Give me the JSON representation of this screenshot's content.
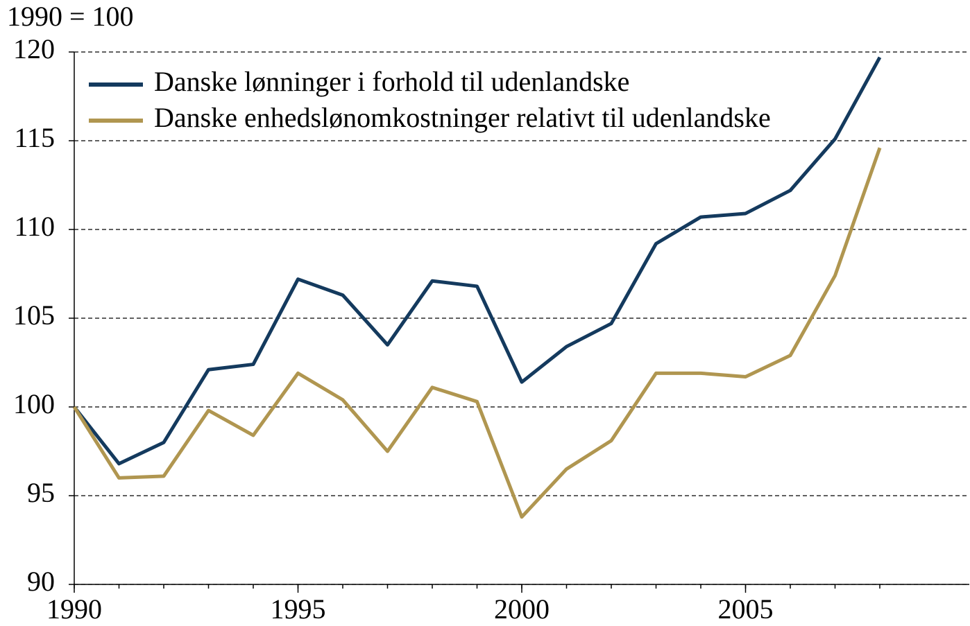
{
  "chart_data": {
    "type": "line",
    "unit_label": "1990 = 100",
    "x": [
      1990,
      1991,
      1992,
      1993,
      1994,
      1995,
      1996,
      1997,
      1998,
      1999,
      2000,
      2001,
      2002,
      2003,
      2004,
      2005,
      2006,
      2007,
      2008
    ],
    "series": [
      {
        "name": "Danske lønninger i forhold til udenlandske",
        "color": "#143a5e",
        "values": [
          100,
          96.8,
          98.0,
          102.1,
          102.4,
          107.2,
          106.3,
          103.5,
          107.1,
          106.8,
          101.4,
          103.4,
          104.7,
          109.2,
          110.7,
          110.9,
          112.2,
          115.1,
          119.7
        ]
      },
      {
        "name": "Danske enhedslønomkostninger relativt til udenlandske",
        "color": "#b09650",
        "values": [
          100,
          96.0,
          96.1,
          99.8,
          98.4,
          101.9,
          100.4,
          97.5,
          101.1,
          100.3,
          93.8,
          96.5,
          98.1,
          101.9,
          101.9,
          101.7,
          102.9,
          107.4,
          114.6
        ]
      }
    ],
    "xlim": [
      1990,
      2010
    ],
    "xticks": [
      1990,
      1995,
      2000,
      2005
    ],
    "ylim": [
      90,
      120
    ],
    "yticks": [
      90,
      95,
      100,
      105,
      110,
      115,
      120
    ],
    "grid": true,
    "legend": "top-left"
  }
}
